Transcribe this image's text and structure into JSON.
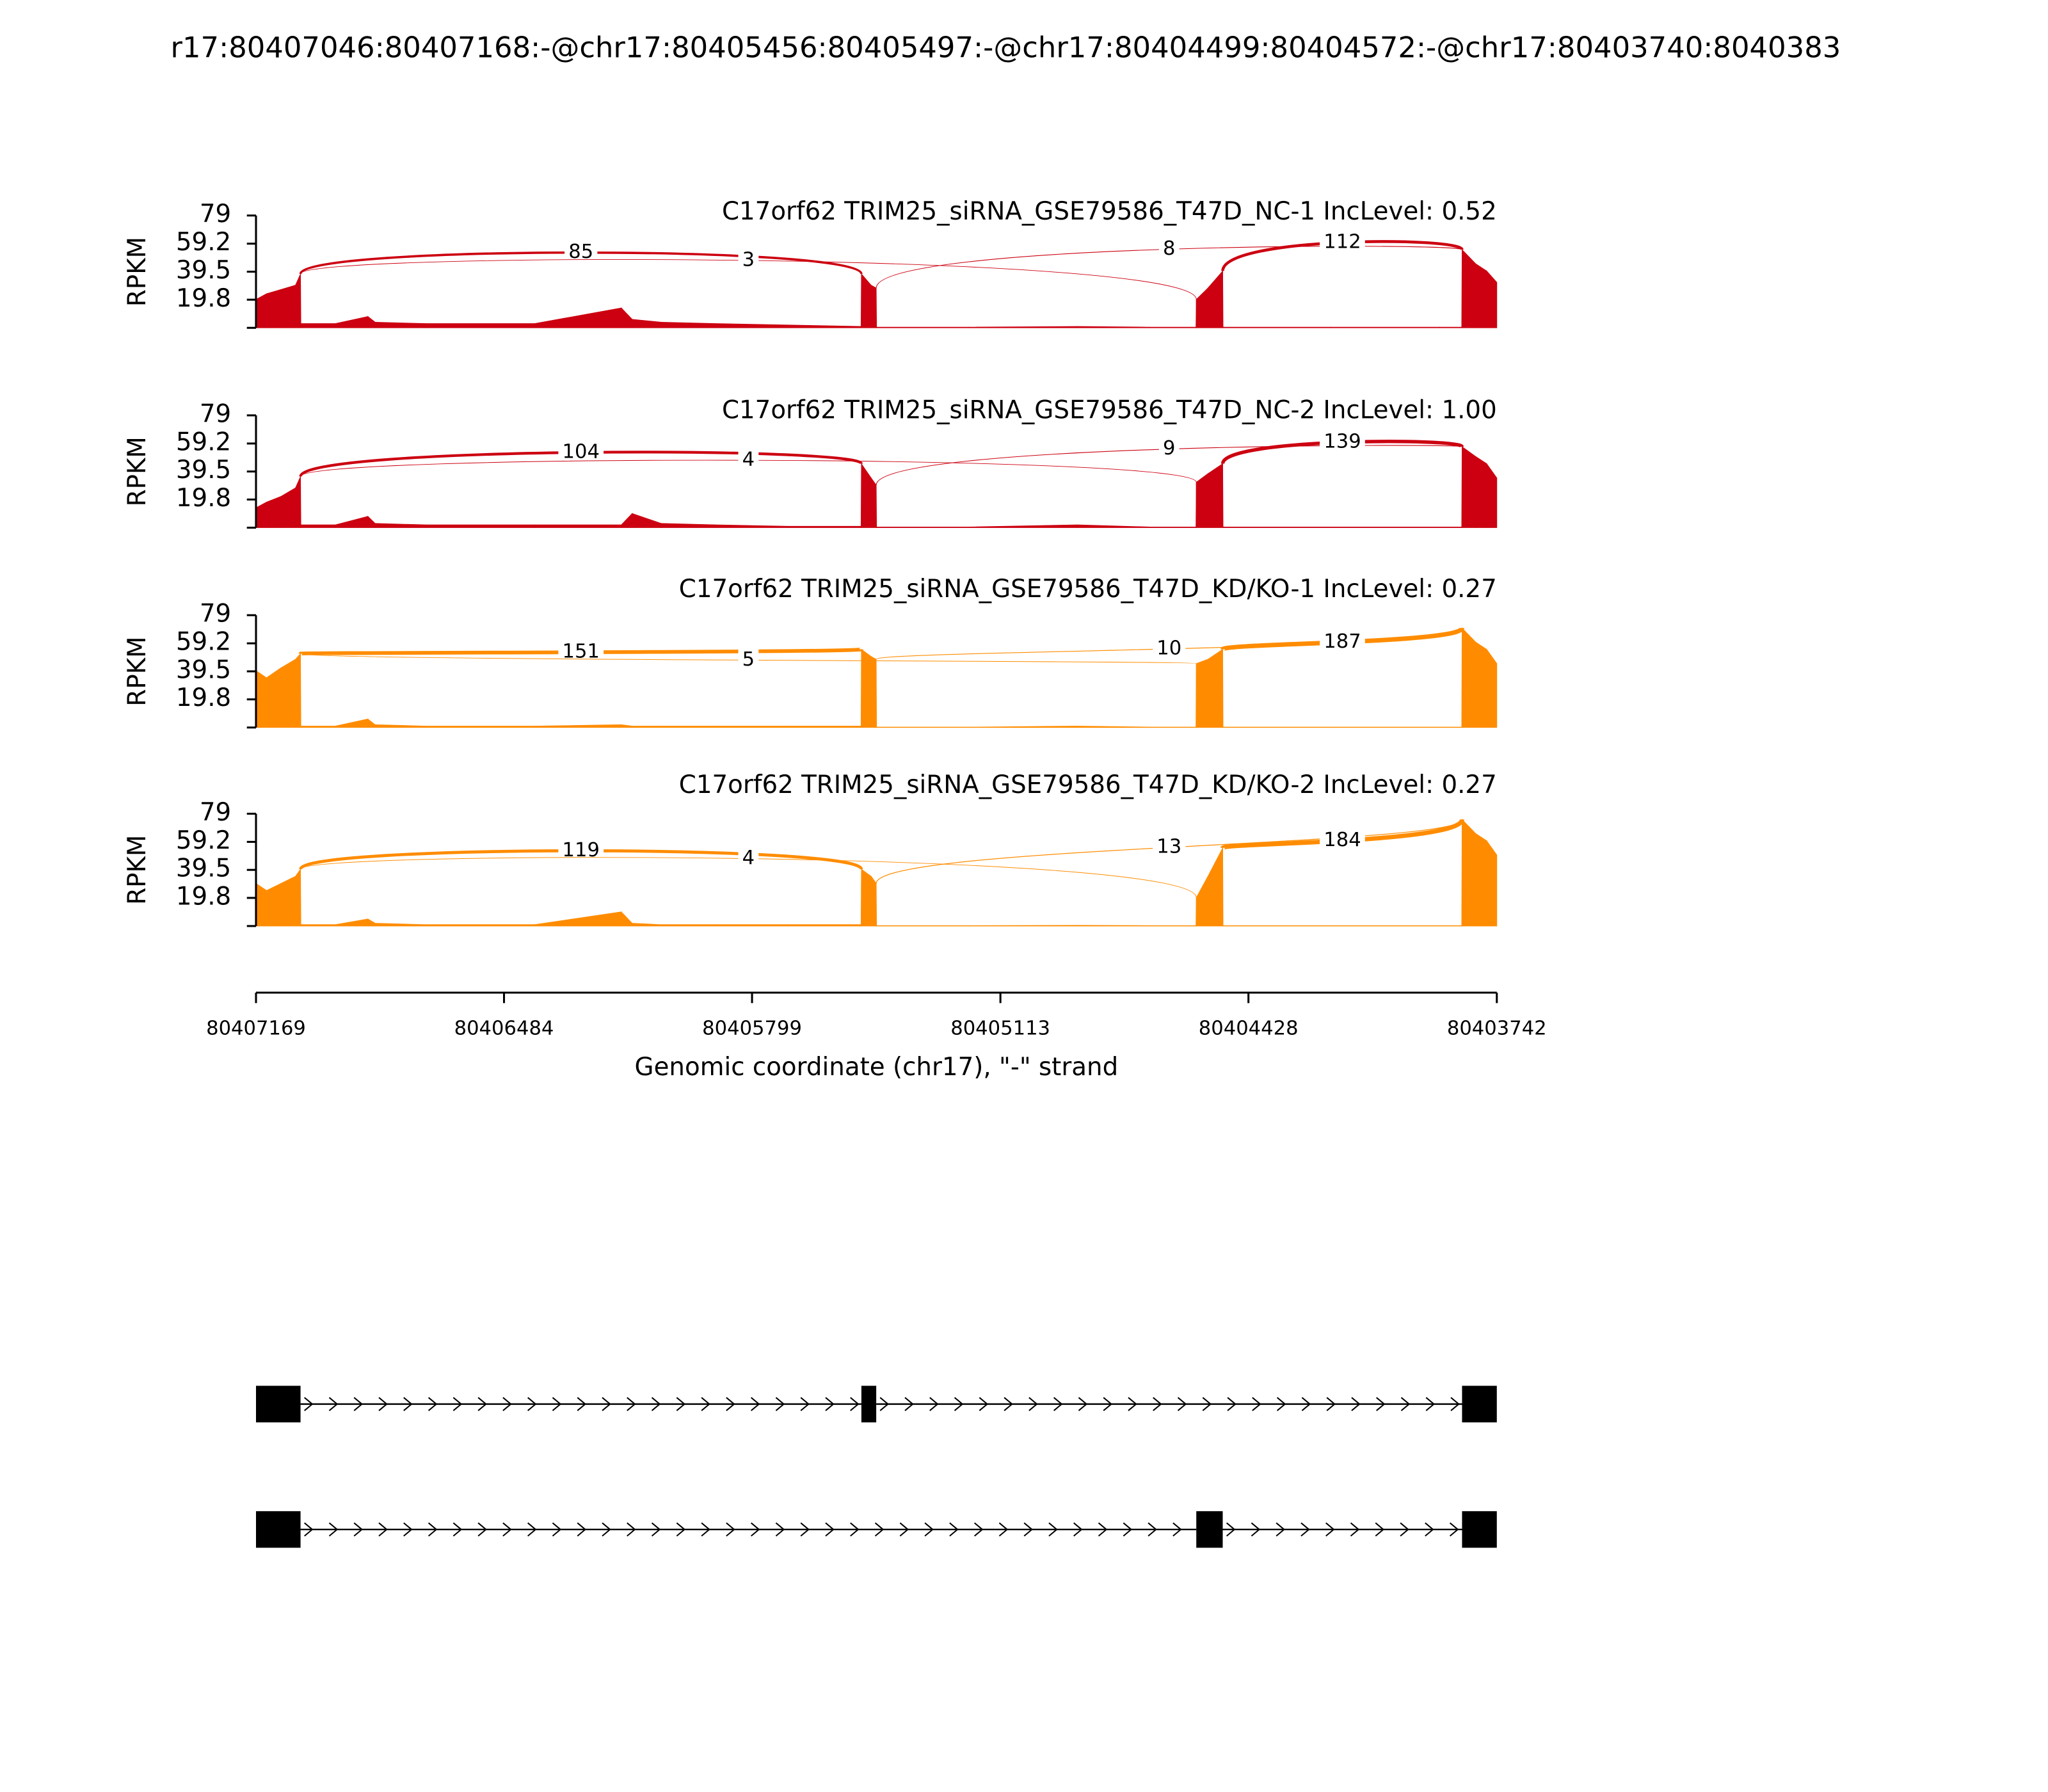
{
  "title": "r17:80407046:80407168:-@chr17:80405456:80405497:-@chr17:80404499:80404572:-@chr17:80403740:8040383",
  "chart_data": [
    {
      "type": "sashimi",
      "title": "C17orf62 TRIM25_siRNA_GSE79586_T47D_NC-1 IncLevel: 0.52",
      "color": "#cc0010",
      "ylabel": "RPKM",
      "xlim": [
        80407169,
        80403742
      ],
      "ylim": [
        0,
        79
      ],
      "yticks": [
        19.8,
        39.5,
        59.2,
        79
      ],
      "x": [
        80407169,
        80407140,
        80407100,
        80407060,
        80407046,
        80407045,
        80406950,
        80406860,
        80406840,
        80406700,
        80406400,
        80406160,
        80406130,
        80406050,
        80405900,
        80405700,
        80405498,
        80405497,
        80405470,
        80405456,
        80405455,
        80405200,
        80404900,
        80404700,
        80404573,
        80404572,
        80404540,
        80404499,
        80404498,
        80404200,
        80403900,
        80403839,
        80403838,
        80403800,
        80403770,
        80403742
      ],
      "values": [
        20,
        24,
        27,
        30,
        38,
        3,
        3,
        8,
        4,
        3,
        3,
        14,
        6,
        4,
        3,
        2,
        1,
        38,
        30,
        28,
        0.5,
        0.5,
        1,
        0.5,
        0.5,
        20,
        28,
        40,
        0.5,
        0.5,
        0.5,
        0.5,
        55,
        45,
        40,
        32
      ],
      "junctions": [
        {
          "start": 80407046,
          "end": 80405497,
          "count": 85
        },
        {
          "start": 80407046,
          "end": 80404572,
          "count": 3
        },
        {
          "start": 80405456,
          "end": 80403838,
          "count": 8
        },
        {
          "start": 80404499,
          "end": 80403838,
          "count": 112
        }
      ]
    },
    {
      "type": "sashimi",
      "title": "C17orf62 TRIM25_siRNA_GSE79586_T47D_NC-2 IncLevel: 1.00",
      "color": "#cc0010",
      "ylabel": "RPKM",
      "xlim": [
        80407169,
        80403742
      ],
      "ylim": [
        0,
        79
      ],
      "yticks": [
        19.8,
        39.5,
        59.2,
        79
      ],
      "x": [
        80407169,
        80407140,
        80407100,
        80407060,
        80407046,
        80407045,
        80406950,
        80406860,
        80406840,
        80406700,
        80406400,
        80406160,
        80406130,
        80406050,
        80405900,
        80405700,
        80405498,
        80405497,
        80405470,
        80405456,
        80405455,
        80405200,
        80404900,
        80404700,
        80404573,
        80404572,
        80404540,
        80404499,
        80404498,
        80404200,
        80403900,
        80403839,
        80403838,
        80403800,
        80403770,
        80403742
      ],
      "values": [
        14,
        18,
        22,
        28,
        36,
        2,
        2,
        8,
        3,
        2,
        2,
        2,
        10,
        3,
        2,
        1,
        1,
        45,
        35,
        30,
        0.5,
        0.5,
        2,
        0.5,
        0.5,
        32,
        38,
        45,
        0.5,
        0.5,
        0.5,
        0.5,
        57,
        50,
        45,
        35
      ],
      "junctions": [
        {
          "start": 80407046,
          "end": 80405497,
          "count": 104
        },
        {
          "start": 80407046,
          "end": 80404572,
          "count": 4
        },
        {
          "start": 80405456,
          "end": 80403838,
          "count": 9
        },
        {
          "start": 80404499,
          "end": 80403838,
          "count": 139
        }
      ]
    },
    {
      "type": "sashimi",
      "title": "C17orf62 TRIM25_siRNA_GSE79586_T47D_KD/KO-1 IncLevel: 0.27",
      "color": "#ff8c00",
      "ylabel": "RPKM",
      "xlim": [
        80407169,
        80403742
      ],
      "ylim": [
        0,
        79
      ],
      "yticks": [
        19.8,
        39.5,
        59.2,
        79
      ],
      "x": [
        80407169,
        80407140,
        80407100,
        80407060,
        80407046,
        80407045,
        80406950,
        80406860,
        80406840,
        80406700,
        80406400,
        80406160,
        80406130,
        80406050,
        80405900,
        80405700,
        80405498,
        80405497,
        80405470,
        80405456,
        80405455,
        80405200,
        80404900,
        80404700,
        80404573,
        80404572,
        80404540,
        80404499,
        80404498,
        80404200,
        80403900,
        80403839,
        80403838,
        80403800,
        80403770,
        80403742
      ],
      "values": [
        40,
        35,
        42,
        48,
        52,
        1,
        1,
        6,
        2,
        1,
        1,
        2,
        1,
        1,
        1,
        1,
        1,
        55,
        50,
        48,
        0.3,
        0.3,
        1,
        0.3,
        0.3,
        45,
        48,
        55,
        0.3,
        0.3,
        0.3,
        0.3,
        70,
        60,
        55,
        45
      ],
      "junctions": [
        {
          "start": 80407046,
          "end": 80405497,
          "count": 151
        },
        {
          "start": 80407046,
          "end": 80404572,
          "count": 5
        },
        {
          "start": 80405456,
          "end": 80403838,
          "count": 10
        },
        {
          "start": 80404499,
          "end": 80403838,
          "count": 187
        }
      ]
    },
    {
      "type": "sashimi",
      "title": "C17orf62 TRIM25_siRNA_GSE79586_T47D_KD/KO-2 IncLevel: 0.27",
      "color": "#ff8c00",
      "ylabel": "RPKM",
      "xlim": [
        80407169,
        80403742
      ],
      "ylim": [
        0,
        79
      ],
      "yticks": [
        19.8,
        39.5,
        59.2,
        79
      ],
      "xticks": [
        80407169,
        80406484,
        80405799,
        80405113,
        80404428,
        80403742
      ],
      "xlabel": "Genomic coordinate (chr17), \"-\" strand",
      "x": [
        80407169,
        80407140,
        80407100,
        80407060,
        80407046,
        80407045,
        80406950,
        80406860,
        80406840,
        80406700,
        80406400,
        80406160,
        80406130,
        80406050,
        80405900,
        80405700,
        80405498,
        80405497,
        80405470,
        80405456,
        80405455,
        80405200,
        80404900,
        80404700,
        80404573,
        80404572,
        80404540,
        80404499,
        80404498,
        80404200,
        80403900,
        80403839,
        80403838,
        80403800,
        80403770,
        80403742
      ],
      "values": [
        30,
        25,
        30,
        35,
        40,
        1,
        1,
        5,
        2,
        1,
        1,
        10,
        2,
        1,
        1,
        1,
        1,
        40,
        35,
        30,
        0.3,
        0.3,
        0.5,
        0.3,
        0.3,
        20,
        35,
        55,
        0.3,
        0.3,
        0.3,
        0.3,
        75,
        65,
        60,
        50
      ],
      "junctions": [
        {
          "start": 80407046,
          "end": 80405497,
          "count": 119
        },
        {
          "start": 80407046,
          "end": 80404572,
          "count": 4
        },
        {
          "start": 80405456,
          "end": 80403838,
          "count": 13
        },
        {
          "start": 80404499,
          "end": 80403838,
          "count": 184
        }
      ]
    },
    {
      "type": "gene-model",
      "xlim": [
        80407169,
        80403742
      ],
      "transcripts": [
        {
          "exons": [
            [
              80407169,
              80407046
            ],
            [
              80405497,
              80405456
            ],
            [
              80403838,
              80403742
            ]
          ]
        },
        {
          "exons": [
            [
              80407169,
              80407046
            ],
            [
              80404572,
              80404499
            ],
            [
              80403838,
              80403742
            ]
          ]
        }
      ]
    }
  ]
}
